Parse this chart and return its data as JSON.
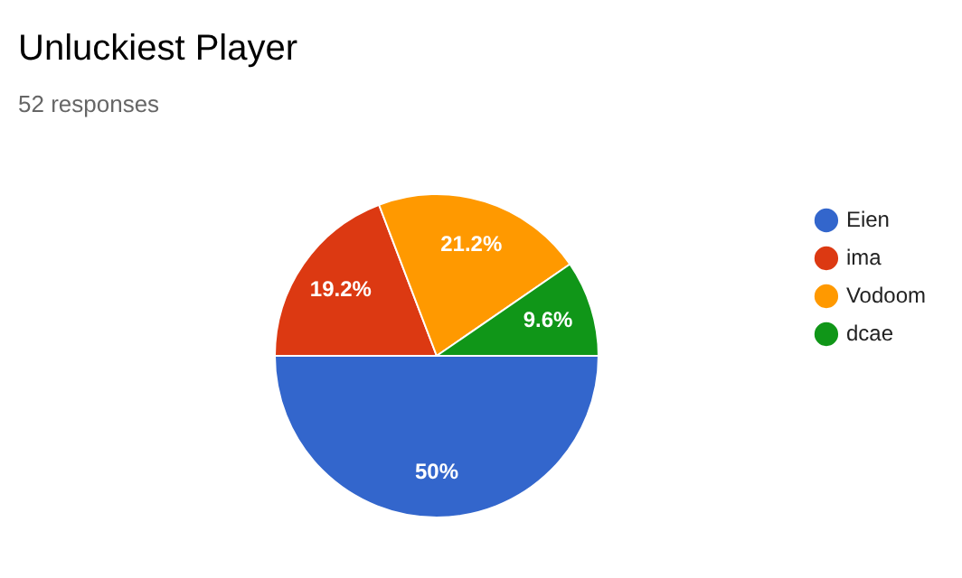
{
  "chart_data": {
    "type": "pie",
    "title": "Unluckiest Player",
    "subtitle": "52 responses",
    "categories": [
      "Eien",
      "ima",
      "Vodoom",
      "dcae"
    ],
    "values": [
      50,
      19.2,
      21.2,
      9.6
    ],
    "colors": [
      "#3366cc",
      "#dc3912",
      "#ff9900",
      "#109618"
    ],
    "value_labels": [
      "50%",
      "19.2%",
      "21.2%",
      "9.6%"
    ],
    "legend": "right"
  }
}
